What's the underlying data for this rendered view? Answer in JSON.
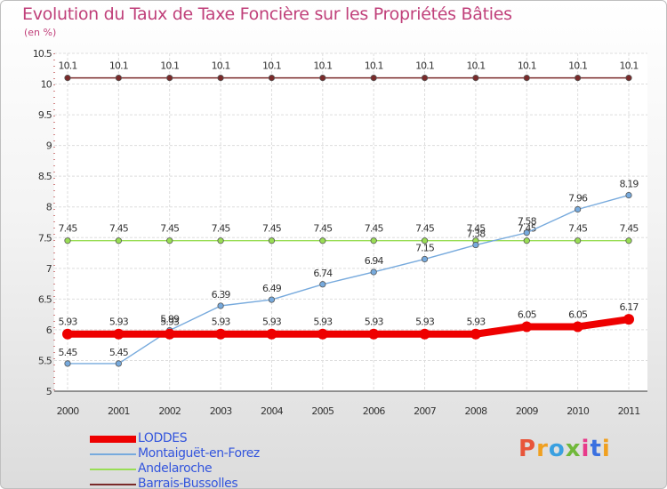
{
  "header": {
    "title": "Evolution du Taux de Taxe Foncière sur les Propriétés Bâties",
    "unit": "(en %)"
  },
  "logo": {
    "text": "Proxiti",
    "colors": [
      "#e8553a",
      "#f0a020",
      "#3aa0e0",
      "#70b83a",
      "#e83a8a",
      "#3a70e0",
      "#f0a020"
    ]
  },
  "chart_data": {
    "type": "line",
    "title": "Evolution du Taux de Taxe Foncière sur les Propriétés Bâties",
    "ylabel": "(en %)",
    "xlabel": "",
    "x": [
      "2000",
      "2001",
      "2002",
      "2003",
      "2004",
      "2005",
      "2006",
      "2007",
      "2008",
      "2009",
      "2010",
      "2011"
    ],
    "ylim": [
      5,
      10.5
    ],
    "yticks": [
      "5",
      "5.5",
      "6",
      "6.5",
      "7",
      "7.5",
      "8",
      "8.5",
      "9",
      "9.5",
      "10",
      "10.5"
    ],
    "grid": true,
    "legend_position": "bottom-left",
    "series": [
      {
        "name": "Barrais-Bussolles",
        "color": "#7a2a2a",
        "values": [
          10.1,
          10.1,
          10.1,
          10.1,
          10.1,
          10.1,
          10.1,
          10.1,
          10.1,
          10.1,
          10.1,
          10.1
        ],
        "labels": [
          "10.1",
          "10.1",
          "10.1",
          "10.1",
          "10.1",
          "10.1",
          "10.1",
          "10.1",
          "10.1",
          "10.1",
          "10.1",
          "10.1"
        ]
      },
      {
        "name": "Andelaroche",
        "color": "#99dd55",
        "values": [
          7.45,
          7.45,
          7.45,
          7.45,
          7.45,
          7.45,
          7.45,
          7.45,
          7.45,
          7.45,
          7.45,
          7.45
        ],
        "labels": [
          "7.45",
          "7.45",
          "7.45",
          "7.45",
          "7.45",
          "7.45",
          "7.45",
          "7.45",
          "7.45",
          "7.45",
          "7.45",
          "7.45"
        ]
      },
      {
        "name": "Montaiguët-en-Forez",
        "color": "#77aadd",
        "values": [
          5.45,
          5.45,
          5.99,
          6.39,
          6.49,
          6.74,
          6.94,
          7.15,
          7.38,
          7.58,
          7.96,
          8.19
        ],
        "labels": [
          "5.45",
          "5.45",
          "5.99",
          "6.39",
          "6.49",
          "6.74",
          "6.94",
          "7.15",
          "7.38",
          "7.58",
          "7.96",
          "8.19"
        ]
      },
      {
        "name": "LODDES",
        "color": "#ee0000",
        "values": [
          5.93,
          5.93,
          5.93,
          5.93,
          5.93,
          5.93,
          5.93,
          5.93,
          5.93,
          6.05,
          6.05,
          6.17
        ],
        "labels": [
          "5.93",
          "5.93",
          "5.93",
          "5.93",
          "5.93",
          "5.93",
          "5.93",
          "5.93",
          "5.93",
          "6.05",
          "6.05",
          "6.17"
        ]
      }
    ],
    "legend_order": [
      "LODDES",
      "Montaiguët-en-Forez",
      "Andelaroche",
      "Barrais-Bussolles"
    ]
  }
}
